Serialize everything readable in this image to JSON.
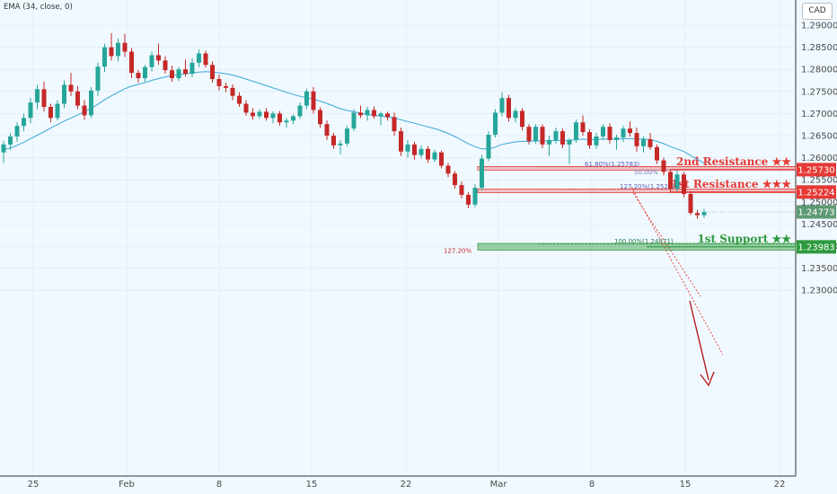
{
  "indicator_label": "EMA (34, close, 0)",
  "currency": "CAD",
  "colors": {
    "up": "#26a69a",
    "down": "#c62828",
    "ema": "#3aa7d6",
    "resistance": "#e53935",
    "support": "#2e9a3e",
    "current": "#5d9a73"
  },
  "chart_data": {
    "type": "candlestick",
    "instrument_currency": "CAD",
    "ylim": [
      1.2275,
      1.2915
    ],
    "y_ticks": [
      1.29,
      1.285,
      1.28,
      1.275,
      1.27,
      1.265,
      1.26,
      1.255,
      1.25,
      1.245,
      1.24,
      1.235,
      1.23
    ],
    "y_tick_labels": [
      "1.29000",
      "1.28500",
      "1.28000",
      "1.27500",
      "1.27000",
      "1.26500",
      "1.26000",
      "1.25500",
      "1.25000",
      "1.24500",
      "1.24000",
      "1.23500",
      "1.23000"
    ],
    "x_ticks": [
      "25",
      "Feb",
      "8",
      "15",
      "22",
      "Mar",
      "8",
      "15",
      "22"
    ],
    "ema_label": "EMA (34, close, 0)",
    "ohlc": [
      [
        1.2612,
        1.2638,
        1.2588,
        1.263
      ],
      [
        1.263,
        1.2655,
        1.2618,
        1.2648
      ],
      [
        1.2648,
        1.268,
        1.2636,
        1.2672
      ],
      [
        1.2672,
        1.27,
        1.266,
        1.269
      ],
      [
        1.269,
        1.2735,
        1.2678,
        1.2725
      ],
      [
        1.2725,
        1.2765,
        1.271,
        1.2755
      ],
      [
        1.2755,
        1.2772,
        1.2705,
        1.2715
      ],
      [
        1.2715,
        1.2722,
        1.268,
        1.269
      ],
      [
        1.269,
        1.273,
        1.2684,
        1.2722
      ],
      [
        1.2722,
        1.2775,
        1.2712,
        1.2765
      ],
      [
        1.2765,
        1.2792,
        1.274,
        1.275
      ],
      [
        1.275,
        1.2762,
        1.271,
        1.2718
      ],
      [
        1.2718,
        1.273,
        1.2686,
        1.2696
      ],
      [
        1.2696,
        1.276,
        1.269,
        1.2752
      ],
      [
        1.2752,
        1.2815,
        1.274,
        1.2806
      ],
      [
        1.2806,
        1.2858,
        1.2794,
        1.285
      ],
      [
        1.285,
        1.2882,
        1.282,
        1.283
      ],
      [
        1.283,
        1.287,
        1.2818,
        1.286
      ],
      [
        1.286,
        1.288,
        1.2828,
        1.284
      ],
      [
        1.284,
        1.2848,
        1.278,
        1.2792
      ],
      [
        1.2792,
        1.2798,
        1.277,
        1.278
      ],
      [
        1.278,
        1.281,
        1.2772,
        1.2805
      ],
      [
        1.2805,
        1.284,
        1.2795,
        1.2832
      ],
      [
        1.2832,
        1.2858,
        1.281,
        1.282
      ],
      [
        1.282,
        1.283,
        1.279,
        1.2798
      ],
      [
        1.2798,
        1.2808,
        1.2772,
        1.278
      ],
      [
        1.278,
        1.2805,
        1.2774,
        1.28
      ],
      [
        1.28,
        1.2822,
        1.2784,
        1.279
      ],
      [
        1.279,
        1.2825,
        1.2782,
        1.2815
      ],
      [
        1.2815,
        1.2845,
        1.2805,
        1.2836
      ],
      [
        1.2836,
        1.2842,
        1.2804,
        1.281
      ],
      [
        1.281,
        1.2818,
        1.277,
        1.2778
      ],
      [
        1.2778,
        1.2788,
        1.2752,
        1.2762
      ],
      [
        1.2762,
        1.277,
        1.2748,
        1.2758
      ],
      [
        1.2758,
        1.2766,
        1.273,
        1.274
      ],
      [
        1.274,
        1.2748,
        1.2715,
        1.2722
      ],
      [
        1.2722,
        1.273,
        1.2695,
        1.2702
      ],
      [
        1.2702,
        1.2712,
        1.2686,
        1.2694
      ],
      [
        1.2694,
        1.271,
        1.2688,
        1.2704
      ],
      [
        1.2704,
        1.2712,
        1.2684,
        1.269
      ],
      [
        1.269,
        1.2705,
        1.2678,
        1.27
      ],
      [
        1.27,
        1.2706,
        1.2672,
        1.268
      ],
      [
        1.268,
        1.269,
        1.2668,
        1.2684
      ],
      [
        1.2684,
        1.2698,
        1.2676,
        1.2694
      ],
      [
        1.2694,
        1.2725,
        1.2688,
        1.2718
      ],
      [
        1.2718,
        1.2756,
        1.271,
        1.275
      ],
      [
        1.275,
        1.276,
        1.27,
        1.2708
      ],
      [
        1.2708,
        1.2714,
        1.2668,
        1.2676
      ],
      [
        1.2676,
        1.2684,
        1.264,
        1.265
      ],
      [
        1.265,
        1.2656,
        1.262,
        1.2628
      ],
      [
        1.2628,
        1.264,
        1.2608,
        1.2632
      ],
      [
        1.2632,
        1.2672,
        1.2626,
        1.2666
      ],
      [
        1.2666,
        1.271,
        1.266,
        1.2702
      ],
      [
        1.2702,
        1.2718,
        1.269,
        1.2696
      ],
      [
        1.2696,
        1.2715,
        1.2684,
        1.2708
      ],
      [
        1.2708,
        1.2716,
        1.2688,
        1.2694
      ],
      [
        1.2694,
        1.2704,
        1.2674,
        1.27
      ],
      [
        1.27,
        1.2704,
        1.2684,
        1.2692
      ],
      [
        1.2692,
        1.2702,
        1.265,
        1.266
      ],
      [
        1.266,
        1.2668,
        1.2604,
        1.2614
      ],
      [
        1.2614,
        1.264,
        1.26,
        1.263
      ],
      [
        1.263,
        1.2636,
        1.2596,
        1.2606
      ],
      [
        1.2606,
        1.2628,
        1.2598,
        1.262
      ],
      [
        1.262,
        1.2626,
        1.2588,
        1.2596
      ],
      [
        1.2596,
        1.2618,
        1.259,
        1.2612
      ],
      [
        1.2612,
        1.2616,
        1.2576,
        1.2582
      ],
      [
        1.2582,
        1.2588,
        1.2556,
        1.2564
      ],
      [
        1.2564,
        1.257,
        1.253,
        1.2538
      ],
      [
        1.2538,
        1.2546,
        1.2508,
        1.2516
      ],
      [
        1.2516,
        1.2522,
        1.2486,
        1.2494
      ],
      [
        1.2494,
        1.254,
        1.2488,
        1.2532
      ],
      [
        1.2532,
        1.2606,
        1.2526,
        1.2598
      ],
      [
        1.2598,
        1.266,
        1.2592,
        1.2652
      ],
      [
        1.2652,
        1.271,
        1.2646,
        1.2702
      ],
      [
        1.2702,
        1.2748,
        1.2694,
        1.2735
      ],
      [
        1.2735,
        1.2742,
        1.2682,
        1.269
      ],
      [
        1.269,
        1.2712,
        1.268,
        1.2706
      ],
      [
        1.2706,
        1.2712,
        1.2662,
        1.267
      ],
      [
        1.267,
        1.2676,
        1.263,
        1.2638
      ],
      [
        1.2638,
        1.2676,
        1.2632,
        1.267
      ],
      [
        1.267,
        1.2676,
        1.2622,
        1.263
      ],
      [
        1.263,
        1.265,
        1.2604,
        1.264
      ],
      [
        1.264,
        1.2668,
        1.2632,
        1.266
      ],
      [
        1.266,
        1.2666,
        1.2622,
        1.263
      ],
      [
        1.263,
        1.2644,
        1.2586,
        1.264
      ],
      [
        1.264,
        1.2686,
        1.2634,
        1.268
      ],
      [
        1.268,
        1.2696,
        1.265,
        1.2658
      ],
      [
        1.2658,
        1.2664,
        1.262,
        1.2628
      ],
      [
        1.2628,
        1.2656,
        1.262,
        1.2648
      ],
      [
        1.2648,
        1.2676,
        1.264,
        1.267
      ],
      [
        1.267,
        1.2678,
        1.2632,
        1.264
      ],
      [
        1.264,
        1.2652,
        1.2618,
        1.2646
      ],
      [
        1.2646,
        1.2672,
        1.2636,
        1.2666
      ],
      [
        1.2666,
        1.2682,
        1.2648,
        1.2656
      ],
      [
        1.2656,
        1.2668,
        1.2614,
        1.2626
      ],
      [
        1.2626,
        1.2648,
        1.2612,
        1.2642
      ],
      [
        1.2642,
        1.2656,
        1.2618,
        1.2624
      ],
      [
        1.2624,
        1.263,
        1.2586,
        1.2594
      ],
      [
        1.2594,
        1.26,
        1.256,
        1.2568
      ],
      [
        1.2568,
        1.2574,
        1.2522,
        1.253
      ],
      [
        1.253,
        1.2572,
        1.2524,
        1.2562
      ],
      [
        1.2562,
        1.2568,
        1.251,
        1.2518
      ],
      [
        1.2518,
        1.2524,
        1.247,
        1.2475
      ],
      [
        1.2475,
        1.2482,
        1.2462,
        1.247
      ],
      [
        1.247,
        1.2484,
        1.2464,
        1.2477
      ]
    ],
    "ema": [
      1.2618,
      1.2622,
      1.2628,
      1.2635,
      1.2643,
      1.2651,
      1.2659,
      1.2667,
      1.2675,
      1.2683,
      1.269,
      1.2697,
      1.2704,
      1.2712,
      1.2721,
      1.2731,
      1.274,
      1.2748,
      1.2756,
      1.2762,
      1.2766,
      1.277,
      1.2775,
      1.2779,
      1.2783,
      1.2786,
      1.2788,
      1.279,
      1.2792,
      1.2794,
      1.2795,
      1.2794,
      1.2792,
      1.279,
      1.2787,
      1.2783,
      1.2778,
      1.2773,
      1.2768,
      1.2763,
      1.2758,
      1.2753,
      1.2748,
      1.2743,
      1.2739,
      1.2736,
      1.2732,
      1.2728,
      1.2723,
      1.2717,
      1.2711,
      1.2707,
      1.2704,
      1.2701,
      1.2698,
      1.2696,
      1.2694,
      1.2692,
      1.269,
      1.2686,
      1.2682,
      1.2678,
      1.2674,
      1.267,
      1.2666,
      1.2661,
      1.2655,
      1.2648,
      1.264,
      1.2632,
      1.2625,
      1.262,
      1.262,
      1.2624,
      1.263,
      1.2633,
      1.2636,
      1.2637,
      1.2637,
      1.2638,
      1.2638,
      1.2638,
      1.2639,
      1.2639,
      1.2639,
      1.2641,
      1.2642,
      1.2641,
      1.2641,
      1.2642,
      1.2642,
      1.2642,
      1.2643,
      1.2643,
      1.2642,
      1.2642,
      1.2641,
      1.2637,
      1.2632,
      1.2625,
      1.262,
      1.2614,
      1.2605,
      1.2596,
      1.2588
    ],
    "resistance_zones": [
      {
        "label": "2nd Resistance ★★",
        "price_label": "1.25730",
        "top": 1.258,
        "bottom": 1.2572,
        "line": 1.2573,
        "fib_labels": [
          "61.80%(1.25783)",
          "50.00%"
        ]
      },
      {
        "label": "1st Resistance ★★★",
        "price_label": "1.25224",
        "top": 1.2529,
        "bottom": 1.2521,
        "line": 1.25224,
        "fib_labels": [
          "127.20%(1.2522)"
        ]
      }
    ],
    "support_zones": [
      {
        "label": "1st Support ★★",
        "price_label": "1.23983",
        "top": 1.2406,
        "bottom": 1.2391,
        "line": 1.23983,
        "fib_labels": [
          "100.00%(1.24071)",
          "127.20%"
        ]
      }
    ],
    "last_price_label": "1.24773",
    "last_price": 1.24773
  }
}
